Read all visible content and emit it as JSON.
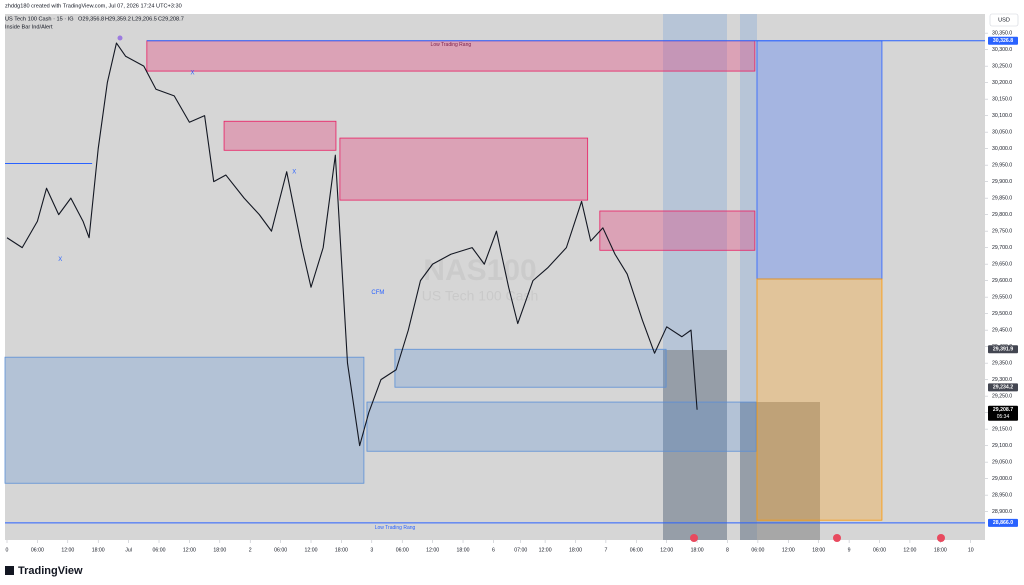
{
  "header": {
    "author_line": "zhddg180 created with TradingView.com, Jul 07, 2026 17:24 UTC+3:30",
    "symbol": "US Tech 100 Cash · 15 · IG",
    "ohlc": [
      "O29,356.8",
      "H29,359.2",
      "L29,206.5",
      "C29,208.7"
    ],
    "indicator": "Inside Bar Ind/Alert",
    "currency": "USD",
    "watermark": [
      "NAS100",
      "US Tech 100 Cash"
    ],
    "logo": "TradingView"
  },
  "chart_data": {
    "type": "line",
    "series": [
      {
        "name": "US Tech 100 Cash",
        "color": "#131722",
        "x": [
          0,
          0.5,
          1,
          1.3,
          1.7,
          2.1,
          2.5,
          2.7,
          3,
          3.3,
          3.6,
          3.9,
          4.5,
          4.9,
          5.5,
          6,
          6.5,
          6.8,
          7.2,
          7.8,
          8.3,
          8.7,
          9.2,
          9.7,
          10,
          10.4,
          10.8,
          11.2,
          11.6,
          11.9,
          12.3,
          12.8,
          13.2,
          13.6,
          14,
          14.6,
          15.3,
          15.7,
          16.1,
          16.5,
          16.8,
          17.3,
          17.8,
          18.4,
          18.9,
          19.2,
          19.6,
          20,
          20.4,
          20.9,
          21.3,
          21.7,
          22.2,
          22.5,
          22.7
        ],
        "values": [
          29730,
          29700,
          29780,
          29880,
          29800,
          29850,
          29780,
          29730,
          30000,
          30200,
          30320,
          30280,
          30250,
          30180,
          30160,
          30080,
          30100,
          29900,
          29920,
          29850,
          29800,
          29750,
          29930,
          29700,
          29580,
          29700,
          29980,
          29350,
          29100,
          29200,
          29300,
          29330,
          29450,
          29600,
          29650,
          29680,
          29700,
          29650,
          29750,
          29580,
          29470,
          29600,
          29640,
          29700,
          29840,
          29720,
          29760,
          29680,
          29620,
          29480,
          29380,
          29460,
          29430,
          29450,
          29208.7
        ]
      }
    ],
    "xlim": [
      -0.066,
      32.17
    ],
    "ylim": [
      28814,
      30408
    ],
    "xticks": [
      {
        "value": 0,
        "label": "0"
      },
      {
        "value": 1,
        "label": "06:00"
      },
      {
        "value": 2,
        "label": "12:00"
      },
      {
        "value": 3,
        "label": "18:00"
      },
      {
        "value": 4,
        "label": "Jul"
      },
      {
        "value": 5,
        "label": "06:00"
      },
      {
        "value": 6,
        "label": "12:00"
      },
      {
        "value": 7,
        "label": "18:00"
      },
      {
        "value": 8,
        "label": "2"
      },
      {
        "value": 9,
        "label": "06:00"
      },
      {
        "value": 10,
        "label": "12:00"
      },
      {
        "value": 11,
        "label": "18:00"
      },
      {
        "value": 12,
        "label": "3"
      },
      {
        "value": 13,
        "label": "06:00"
      },
      {
        "value": 14,
        "label": "12:00"
      },
      {
        "value": 15,
        "label": "18:00"
      },
      {
        "value": 16,
        "label": "6"
      },
      {
        "value": 16.9,
        "label": "07:00"
      },
      {
        "value": 17.7,
        "label": "12:00"
      },
      {
        "value": 18.7,
        "label": "18:00"
      },
      {
        "value": 19.7,
        "label": "7"
      },
      {
        "value": 20.7,
        "label": "06:00"
      },
      {
        "value": 21.7,
        "label": "12:00"
      },
      {
        "value": 22.7,
        "label": "18:00"
      },
      {
        "value": 23.7,
        "label": "8"
      },
      {
        "value": 24.7,
        "label": "06:00"
      },
      {
        "value": 25.7,
        "label": "12:00"
      },
      {
        "value": 26.7,
        "label": "18:00"
      },
      {
        "value": 27.7,
        "label": "9"
      },
      {
        "value": 28.7,
        "label": "06:00"
      },
      {
        "value": 29.7,
        "label": "12:00"
      },
      {
        "value": 30.7,
        "label": "18:00"
      },
      {
        "value": 31.7,
        "label": "10"
      }
    ],
    "yticks": [
      {
        "value": 28900,
        "label": "28,900.0"
      },
      {
        "value": 28950,
        "label": "28,950.0"
      },
      {
        "value": 29000,
        "label": "29,000.0"
      },
      {
        "value": 29050,
        "label": "29,050.0"
      },
      {
        "value": 29100,
        "label": "29,100.0"
      },
      {
        "value": 29150,
        "label": "29,150.0"
      },
      {
        "value": 29200,
        "label": "29,200.0"
      },
      {
        "value": 29250,
        "label": "29,250.0"
      },
      {
        "value": 29300,
        "label": "29,300.0"
      },
      {
        "value": 29350,
        "label": "29,350.0"
      },
      {
        "value": 29400,
        "label": "29,400.0"
      },
      {
        "value": 29450,
        "label": "29,450.0"
      },
      {
        "value": 29500,
        "label": "29,500.0"
      },
      {
        "value": 29550,
        "label": "29,550.0"
      },
      {
        "value": 29600,
        "label": "29,600.0"
      },
      {
        "value": 29650,
        "label": "29,650.0"
      },
      {
        "value": 29700,
        "label": "29,700.0"
      },
      {
        "value": 29750,
        "label": "29,750.0"
      },
      {
        "value": 29800,
        "label": "29,800.0"
      },
      {
        "value": 29850,
        "label": "29,850.0"
      },
      {
        "value": 29900,
        "label": "29,900.0"
      },
      {
        "value": 29950,
        "label": "29,950.0"
      },
      {
        "value": 30000,
        "label": "30,000.0"
      },
      {
        "value": 30050,
        "label": "30,050.0"
      },
      {
        "value": 30100,
        "label": "30,100.0"
      },
      {
        "value": 30150,
        "label": "30,150.0"
      },
      {
        "value": 30200,
        "label": "30,200.0"
      },
      {
        "value": 30250,
        "label": "30,250.0"
      },
      {
        "value": 30300,
        "label": "30,300.0"
      },
      {
        "value": 30350,
        "label": "30,350.0"
      }
    ],
    "grid": false,
    "zones": [
      {
        "x": [
          4.6,
          24.6
        ],
        "y": [
          30235,
          30326.8
        ],
        "color": "#e91e63",
        "label": "Low Trading Rang"
      },
      {
        "x": [
          7.14,
          10.82
        ],
        "y": [
          29995,
          30083
        ],
        "color": "#e91e63"
      },
      {
        "x": [
          10.95,
          19.1
        ],
        "y": [
          29844,
          30032
        ],
        "color": "#e91e63"
      },
      {
        "x": [
          19.5,
          24.6
        ],
        "y": [
          29692,
          29811
        ],
        "color": "#e91e63"
      },
      {
        "x": [
          -0.066,
          11.74
        ],
        "y": [
          28986,
          29368
        ],
        "color": "#5b8fd6"
      },
      {
        "x": [
          12.76,
          21.68
        ],
        "y": [
          29277,
          29392
        ],
        "color": "#5b8fd6"
      },
      {
        "x": [
          11.84,
          24.64
        ],
        "y": [
          29083,
          29232
        ],
        "color": "#5b8fd6"
      },
      {
        "x": [
          24.67,
          28.78
        ],
        "y": [
          29605,
          30326.8
        ],
        "color": "#2962ff"
      },
      {
        "x": [
          24.67,
          28.78
        ],
        "y": [
          28874,
          29605
        ],
        "color": "#ff9800"
      }
    ],
    "levels": [
      {
        "value": 30326.8,
        "x": [
          4.6,
          32.17
        ],
        "color": "#2962ff"
      },
      {
        "value": 28866,
        "x": [
          -0.066,
          32.17
        ],
        "color": "#2962ff",
        "label": "Low Trading Rang"
      },
      {
        "value": 29955,
        "x": [
          -0.066,
          2.8
        ],
        "color": "#2962ff"
      }
    ],
    "annotations": [
      {
        "text": "CFM",
        "x": 12.2,
        "value": 29565
      },
      {
        "text": "X",
        "x": 1.75,
        "value": 29665
      },
      {
        "text": "X",
        "x": 6.1,
        "value": 30230
      },
      {
        "text": "X",
        "x": 9.45,
        "value": 29930
      }
    ],
    "price_labels": [
      {
        "value": 30326.8,
        "label": "30,326.8",
        "color": "#2962ff"
      },
      {
        "value": 29391.9,
        "label": "29,391.9",
        "color": "#434651"
      },
      {
        "value": 29234.2,
        "label": "29,234.2",
        "color": "#434651"
      },
      {
        "value": 29208.7,
        "label": "29,208.7",
        "color": "#000000",
        "countdown": "05:34"
      },
      {
        "value": 28866,
        "label": "28,866.0",
        "color": "#2962ff"
      }
    ]
  }
}
